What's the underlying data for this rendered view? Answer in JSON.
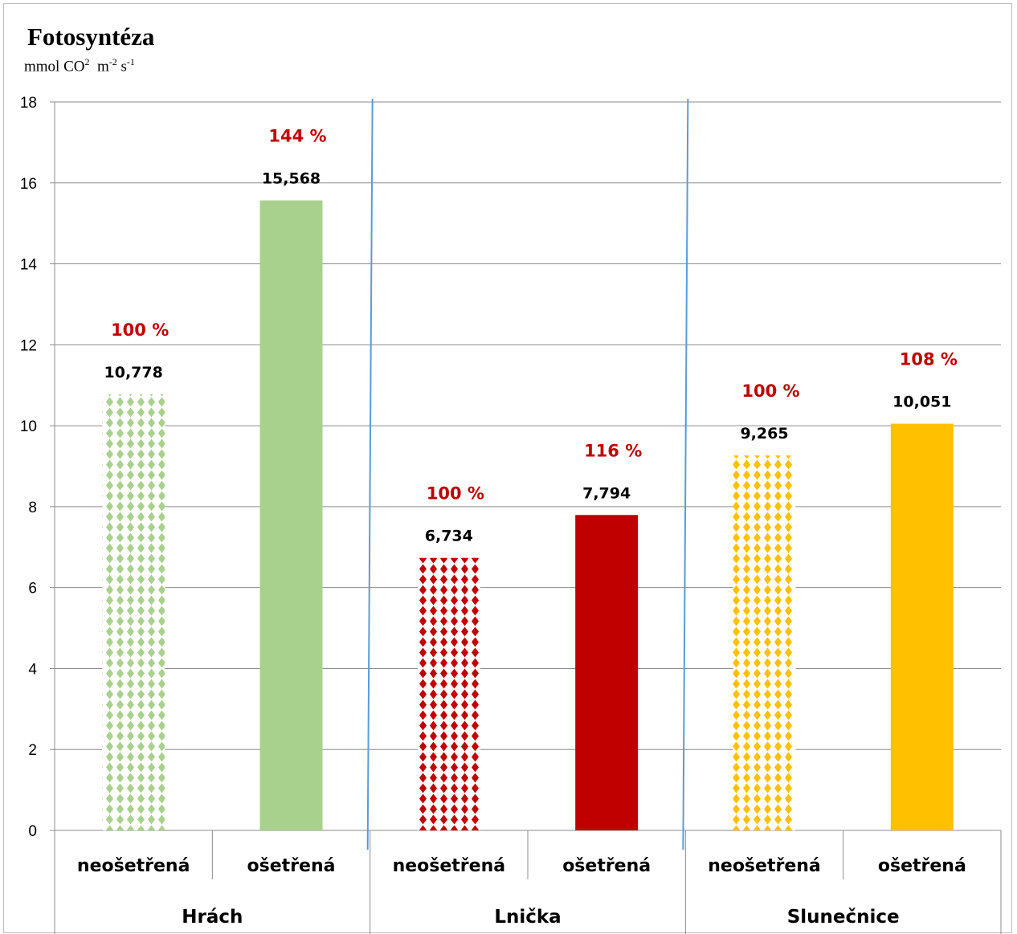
{
  "chart_data": {
    "type": "bar",
    "title": "Fotosyntéza",
    "unit": {
      "base": "mmol CO",
      "co_sup": "2",
      "m": "m",
      "m_sup": "-2",
      "s": "s",
      "s_sup": "-1"
    },
    "ylim": [
      0,
      18
    ],
    "yticks": [
      "0",
      "2",
      "4",
      "6",
      "8",
      "10",
      "12",
      "14",
      "16",
      "18"
    ],
    "grid": true,
    "groups": [
      {
        "name": "Hrách",
        "bars": [
          {
            "category": "neošetřená",
            "value": 10.778,
            "label": "10,778",
            "percent": "100 %",
            "color": "#a9d18e",
            "pattern": true
          },
          {
            "category": "ošetřená",
            "value": 15.568,
            "label": "15,568",
            "percent": "144 %",
            "color": "#a9d18e",
            "pattern": false
          }
        ]
      },
      {
        "name": "Lnička",
        "bars": [
          {
            "category": "neošetřená",
            "value": 6.734,
            "label": "6,734",
            "percent": "100 %",
            "color": "#c00000",
            "pattern": true
          },
          {
            "category": "ošetřená",
            "value": 7.794,
            "label": "7,794",
            "percent": "116 %",
            "color": "#c00000",
            "pattern": false
          }
        ]
      },
      {
        "name": "Slunečnice",
        "bars": [
          {
            "category": "neošetřená",
            "value": 9.265,
            "label": "9,265",
            "percent": "100 %",
            "color": "#ffc000",
            "pattern": true
          },
          {
            "category": "ošetřená",
            "value": 10.051,
            "label": "10,051",
            "percent": "108 %",
            "color": "#ffc000",
            "pattern": false
          }
        ]
      }
    ]
  }
}
